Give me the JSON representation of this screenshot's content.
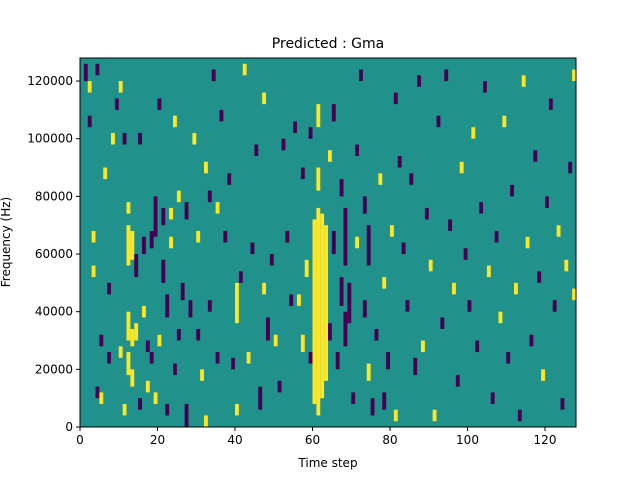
{
  "chart_data": {
    "type": "heatmap",
    "title": "Predicted : Gma",
    "xlabel": "Time step",
    "ylabel": "Frequency (Hz)",
    "xlim": [
      0,
      128
    ],
    "ylim": [
      0,
      128000
    ],
    "x_ticks": [
      0,
      20,
      40,
      60,
      80,
      100,
      120
    ],
    "y_ticks": [
      0,
      20000,
      40000,
      60000,
      80000,
      100000,
      120000
    ],
    "n_time_steps": 128,
    "n_freq_bins": 128,
    "values_legend": {
      "low": -1,
      "mid": 0,
      "high": 1
    },
    "colors": {
      "low": "#440154",
      "mid": "#21918c",
      "high": "#fde725",
      "axis": "#000000"
    },
    "cells": [
      {
        "t": 1,
        "f0": 120000,
        "f1": 126000,
        "v": -1
      },
      {
        "t": 2,
        "f0": 116000,
        "f1": 120000,
        "v": 1
      },
      {
        "t": 2,
        "f0": 104000,
        "f1": 108000,
        "v": -1
      },
      {
        "t": 3,
        "f0": 64000,
        "f1": 68000,
        "v": 1
      },
      {
        "t": 3,
        "f0": 52000,
        "f1": 56000,
        "v": 1
      },
      {
        "t": 4,
        "f0": 10000,
        "f1": 14000,
        "v": -1
      },
      {
        "t": 4,
        "f0": 122000,
        "f1": 126000,
        "v": -1
      },
      {
        "t": 5,
        "f0": 8000,
        "f1": 12000,
        "v": 1
      },
      {
        "t": 5,
        "f0": 28000,
        "f1": 32000,
        "v": -1
      },
      {
        "t": 6,
        "f0": 86000,
        "f1": 90000,
        "v": 1
      },
      {
        "t": 7,
        "f0": 46000,
        "f1": 50000,
        "v": -1
      },
      {
        "t": 7,
        "f0": 22000,
        "f1": 26000,
        "v": -1
      },
      {
        "t": 8,
        "f0": 98000,
        "f1": 102000,
        "v": 1
      },
      {
        "t": 9,
        "f0": 110000,
        "f1": 114000,
        "v": -1
      },
      {
        "t": 10,
        "f0": 24000,
        "f1": 28000,
        "v": 1
      },
      {
        "t": 10,
        "f0": 116000,
        "f1": 120000,
        "v": 1
      },
      {
        "t": 11,
        "f0": 98000,
        "f1": 102000,
        "v": -1
      },
      {
        "t": 11,
        "f0": 4000,
        "f1": 8000,
        "v": 1
      },
      {
        "t": 12,
        "f0": 74000,
        "f1": 78000,
        "v": 1
      },
      {
        "t": 12,
        "f0": 56000,
        "f1": 70000,
        "v": 1
      },
      {
        "t": 12,
        "f0": 30000,
        "f1": 40000,
        "v": 1
      },
      {
        "t": 12,
        "f0": 18000,
        "f1": 26000,
        "v": 1
      },
      {
        "t": 13,
        "f0": 58000,
        "f1": 68000,
        "v": 1
      },
      {
        "t": 13,
        "f0": 28000,
        "f1": 34000,
        "v": 1
      },
      {
        "t": 13,
        "f0": 14000,
        "f1": 20000,
        "v": 1
      },
      {
        "t": 14,
        "f0": 30000,
        "f1": 36000,
        "v": 1
      },
      {
        "t": 14,
        "f0": 52000,
        "f1": 60000,
        "v": -1
      },
      {
        "t": 15,
        "f0": 98000,
        "f1": 102000,
        "v": -1
      },
      {
        "t": 15,
        "f0": 6000,
        "f1": 10000,
        "v": -1
      },
      {
        "t": 16,
        "f0": 60000,
        "f1": 66000,
        "v": -1
      },
      {
        "t": 16,
        "f0": 38000,
        "f1": 42000,
        "v": 1
      },
      {
        "t": 17,
        "f0": 26000,
        "f1": 30000,
        "v": -1
      },
      {
        "t": 17,
        "f0": 12000,
        "f1": 16000,
        "v": 1
      },
      {
        "t": 18,
        "f0": 62000,
        "f1": 68000,
        "v": -1
      },
      {
        "t": 18,
        "f0": 22000,
        "f1": 26000,
        "v": -1
      },
      {
        "t": 19,
        "f0": 66000,
        "f1": 80000,
        "v": -1
      },
      {
        "t": 19,
        "f0": 8000,
        "f1": 12000,
        "v": 1
      },
      {
        "t": 20,
        "f0": 110000,
        "f1": 114000,
        "v": -1
      },
      {
        "t": 20,
        "f0": 28000,
        "f1": 32000,
        "v": 1
      },
      {
        "t": 21,
        "f0": 70000,
        "f1": 76000,
        "v": -1
      },
      {
        "t": 21,
        "f0": 50000,
        "f1": 58000,
        "v": -1
      },
      {
        "t": 22,
        "f0": 38000,
        "f1": 46000,
        "v": -1
      },
      {
        "t": 22,
        "f0": 4000,
        "f1": 8000,
        "v": -1
      },
      {
        "t": 23,
        "f0": 72000,
        "f1": 76000,
        "v": 1
      },
      {
        "t": 23,
        "f0": 62000,
        "f1": 66000,
        "v": 1
      },
      {
        "t": 24,
        "f0": 104000,
        "f1": 108000,
        "v": 1
      },
      {
        "t": 24,
        "f0": 18000,
        "f1": 22000,
        "v": -1
      },
      {
        "t": 25,
        "f0": 78000,
        "f1": 82000,
        "v": 1
      },
      {
        "t": 25,
        "f0": 30000,
        "f1": 34000,
        "v": -1
      },
      {
        "t": 26,
        "f0": 44000,
        "f1": 50000,
        "v": -1
      },
      {
        "t": 27,
        "f0": 72000,
        "f1": 78000,
        "v": -1
      },
      {
        "t": 27,
        "f0": 0,
        "f1": 8000,
        "v": -1
      },
      {
        "t": 28,
        "f0": 38000,
        "f1": 44000,
        "v": -1
      },
      {
        "t": 29,
        "f0": 98000,
        "f1": 102000,
        "v": 1
      },
      {
        "t": 30,
        "f0": 64000,
        "f1": 68000,
        "v": 1
      },
      {
        "t": 30,
        "f0": 30000,
        "f1": 34000,
        "v": -1
      },
      {
        "t": 31,
        "f0": 16000,
        "f1": 20000,
        "v": 1
      },
      {
        "t": 32,
        "f0": 88000,
        "f1": 92000,
        "v": 1
      },
      {
        "t": 32,
        "f0": 0,
        "f1": 4000,
        "v": 1
      },
      {
        "t": 33,
        "f0": 78000,
        "f1": 82000,
        "v": -1
      },
      {
        "t": 33,
        "f0": 40000,
        "f1": 44000,
        "v": -1
      },
      {
        "t": 34,
        "f0": 120000,
        "f1": 124000,
        "v": -1
      },
      {
        "t": 35,
        "f0": 74000,
        "f1": 78000,
        "v": 1
      },
      {
        "t": 35,
        "f0": 22000,
        "f1": 26000,
        "v": -1
      },
      {
        "t": 36,
        "f0": 106000,
        "f1": 110000,
        "v": -1
      },
      {
        "t": 37,
        "f0": 64000,
        "f1": 68000,
        "v": -1
      },
      {
        "t": 38,
        "f0": 84000,
        "f1": 88000,
        "v": -1
      },
      {
        "t": 39,
        "f0": 20000,
        "f1": 24000,
        "v": -1
      },
      {
        "t": 40,
        "f0": 36000,
        "f1": 50000,
        "v": 1
      },
      {
        "t": 40,
        "f0": 4000,
        "f1": 8000,
        "v": 1
      },
      {
        "t": 41,
        "f0": 50000,
        "f1": 54000,
        "v": -1
      },
      {
        "t": 42,
        "f0": 122000,
        "f1": 126000,
        "v": 1
      },
      {
        "t": 43,
        "f0": 22000,
        "f1": 26000,
        "v": 1
      },
      {
        "t": 44,
        "f0": 60000,
        "f1": 64000,
        "v": -1
      },
      {
        "t": 45,
        "f0": 94000,
        "f1": 98000,
        "v": -1
      },
      {
        "t": 46,
        "f0": 6000,
        "f1": 14000,
        "v": -1
      },
      {
        "t": 47,
        "f0": 112000,
        "f1": 116000,
        "v": 1
      },
      {
        "t": 47,
        "f0": 46000,
        "f1": 50000,
        "v": 1
      },
      {
        "t": 48,
        "f0": 30000,
        "f1": 38000,
        "v": -1
      },
      {
        "t": 49,
        "f0": 56000,
        "f1": 60000,
        "v": -1
      },
      {
        "t": 50,
        "f0": 28000,
        "f1": 32000,
        "v": 1
      },
      {
        "t": 51,
        "f0": 12000,
        "f1": 16000,
        "v": -1
      },
      {
        "t": 52,
        "f0": 96000,
        "f1": 100000,
        "v": -1
      },
      {
        "t": 53,
        "f0": 64000,
        "f1": 68000,
        "v": -1
      },
      {
        "t": 54,
        "f0": 42000,
        "f1": 46000,
        "v": -1
      },
      {
        "t": 55,
        "f0": 102000,
        "f1": 106000,
        "v": -1
      },
      {
        "t": 56,
        "f0": 42000,
        "f1": 46000,
        "v": 1
      },
      {
        "t": 57,
        "f0": 86000,
        "f1": 90000,
        "v": -1
      },
      {
        "t": 57,
        "f0": 26000,
        "f1": 32000,
        "v": 1
      },
      {
        "t": 58,
        "f0": 52000,
        "f1": 58000,
        "v": 1
      },
      {
        "t": 59,
        "f0": 100000,
        "f1": 104000,
        "v": -1
      },
      {
        "t": 59,
        "f0": 22000,
        "f1": 26000,
        "v": -1
      },
      {
        "t": 60,
        "f0": 8000,
        "f1": 72000,
        "v": 1
      },
      {
        "t": 61,
        "f0": 4000,
        "f1": 76000,
        "v": 1
      },
      {
        "t": 61,
        "f0": 82000,
        "f1": 90000,
        "v": 1
      },
      {
        "t": 61,
        "f0": 104000,
        "f1": 112000,
        "v": 1
      },
      {
        "t": 62,
        "f0": 10000,
        "f1": 74000,
        "v": 1
      },
      {
        "t": 63,
        "f0": 16000,
        "f1": 70000,
        "v": 1
      },
      {
        "t": 64,
        "f0": 92000,
        "f1": 96000,
        "v": 1
      },
      {
        "t": 64,
        "f0": 30000,
        "f1": 36000,
        "v": -1
      },
      {
        "t": 65,
        "f0": 106000,
        "f1": 112000,
        "v": -1
      },
      {
        "t": 65,
        "f0": 60000,
        "f1": 68000,
        "v": -1
      },
      {
        "t": 66,
        "f0": 20000,
        "f1": 26000,
        "v": -1
      },
      {
        "t": 67,
        "f0": 80000,
        "f1": 86000,
        "v": -1
      },
      {
        "t": 67,
        "f0": 42000,
        "f1": 52000,
        "v": -1
      },
      {
        "t": 68,
        "f0": 56000,
        "f1": 76000,
        "v": -1
      },
      {
        "t": 68,
        "f0": 28000,
        "f1": 40000,
        "v": -1
      },
      {
        "t": 69,
        "f0": 36000,
        "f1": 50000,
        "v": -1
      },
      {
        "t": 70,
        "f0": 8000,
        "f1": 12000,
        "v": -1
      },
      {
        "t": 71,
        "f0": 62000,
        "f1": 66000,
        "v": 1
      },
      {
        "t": 71,
        "f0": 94000,
        "f1": 98000,
        "v": -1
      },
      {
        "t": 72,
        "f0": 120000,
        "f1": 124000,
        "v": -1
      },
      {
        "t": 73,
        "f0": 74000,
        "f1": 80000,
        "v": -1
      },
      {
        "t": 73,
        "f0": 38000,
        "f1": 44000,
        "v": -1
      },
      {
        "t": 74,
        "f0": 56000,
        "f1": 70000,
        "v": -1
      },
      {
        "t": 74,
        "f0": 16000,
        "f1": 22000,
        "v": 1
      },
      {
        "t": 75,
        "f0": 4000,
        "f1": 10000,
        "v": -1
      },
      {
        "t": 76,
        "f0": 30000,
        "f1": 34000,
        "v": -1
      },
      {
        "t": 77,
        "f0": 84000,
        "f1": 88000,
        "v": 1
      },
      {
        "t": 78,
        "f0": 48000,
        "f1": 52000,
        "v": 1
      },
      {
        "t": 78,
        "f0": 6000,
        "f1": 12000,
        "v": -1
      },
      {
        "t": 79,
        "f0": 20000,
        "f1": 26000,
        "v": -1
      },
      {
        "t": 80,
        "f0": 66000,
        "f1": 70000,
        "v": 1
      },
      {
        "t": 81,
        "f0": 112000,
        "f1": 116000,
        "v": -1
      },
      {
        "t": 81,
        "f0": 2000,
        "f1": 6000,
        "v": 1
      },
      {
        "t": 82,
        "f0": 90000,
        "f1": 94000,
        "v": -1
      },
      {
        "t": 83,
        "f0": 60000,
        "f1": 64000,
        "v": -1
      },
      {
        "t": 84,
        "f0": 40000,
        "f1": 44000,
        "v": -1
      },
      {
        "t": 85,
        "f0": 84000,
        "f1": 88000,
        "v": -1
      },
      {
        "t": 86,
        "f0": 18000,
        "f1": 24000,
        "v": -1
      },
      {
        "t": 87,
        "f0": 118000,
        "f1": 122000,
        "v": -1
      },
      {
        "t": 88,
        "f0": 26000,
        "f1": 30000,
        "v": 1
      },
      {
        "t": 89,
        "f0": 72000,
        "f1": 76000,
        "v": -1
      },
      {
        "t": 90,
        "f0": 54000,
        "f1": 58000,
        "v": 1
      },
      {
        "t": 91,
        "f0": 2000,
        "f1": 6000,
        "v": 1
      },
      {
        "t": 92,
        "f0": 104000,
        "f1": 108000,
        "v": -1
      },
      {
        "t": 93,
        "f0": 34000,
        "f1": 38000,
        "v": -1
      },
      {
        "t": 94,
        "f0": 120000,
        "f1": 124000,
        "v": -1
      },
      {
        "t": 95,
        "f0": 68000,
        "f1": 72000,
        "v": -1
      },
      {
        "t": 96,
        "f0": 46000,
        "f1": 50000,
        "v": 1
      },
      {
        "t": 97,
        "f0": 14000,
        "f1": 18000,
        "v": -1
      },
      {
        "t": 98,
        "f0": 88000,
        "f1": 92000,
        "v": 1
      },
      {
        "t": 99,
        "f0": 58000,
        "f1": 62000,
        "v": -1
      },
      {
        "t": 100,
        "f0": 40000,
        "f1": 44000,
        "v": -1
      },
      {
        "t": 101,
        "f0": 100000,
        "f1": 104000,
        "v": 1
      },
      {
        "t": 102,
        "f0": 26000,
        "f1": 30000,
        "v": -1
      },
      {
        "t": 103,
        "f0": 74000,
        "f1": 78000,
        "v": -1
      },
      {
        "t": 104,
        "f0": 116000,
        "f1": 120000,
        "v": -1
      },
      {
        "t": 105,
        "f0": 52000,
        "f1": 56000,
        "v": 1
      },
      {
        "t": 106,
        "f0": 8000,
        "f1": 12000,
        "v": -1
      },
      {
        "t": 107,
        "f0": 64000,
        "f1": 68000,
        "v": -1
      },
      {
        "t": 108,
        "f0": 36000,
        "f1": 40000,
        "v": 1
      },
      {
        "t": 109,
        "f0": 104000,
        "f1": 108000,
        "v": 1
      },
      {
        "t": 110,
        "f0": 22000,
        "f1": 26000,
        "v": -1
      },
      {
        "t": 111,
        "f0": 80000,
        "f1": 84000,
        "v": -1
      },
      {
        "t": 112,
        "f0": 46000,
        "f1": 50000,
        "v": 1
      },
      {
        "t": 113,
        "f0": 2000,
        "f1": 6000,
        "v": -1
      },
      {
        "t": 114,
        "f0": 118000,
        "f1": 122000,
        "v": 1
      },
      {
        "t": 115,
        "f0": 62000,
        "f1": 66000,
        "v": 1
      },
      {
        "t": 116,
        "f0": 28000,
        "f1": 32000,
        "v": -1
      },
      {
        "t": 117,
        "f0": 92000,
        "f1": 96000,
        "v": -1
      },
      {
        "t": 118,
        "f0": 50000,
        "f1": 54000,
        "v": -1
      },
      {
        "t": 119,
        "f0": 16000,
        "f1": 20000,
        "v": 1
      },
      {
        "t": 120,
        "f0": 76000,
        "f1": 80000,
        "v": -1
      },
      {
        "t": 121,
        "f0": 110000,
        "f1": 114000,
        "v": -1
      },
      {
        "t": 122,
        "f0": 40000,
        "f1": 44000,
        "v": -1
      },
      {
        "t": 123,
        "f0": 66000,
        "f1": 70000,
        "v": 1
      },
      {
        "t": 124,
        "f0": 6000,
        "f1": 10000,
        "v": -1
      },
      {
        "t": 125,
        "f0": 54000,
        "f1": 58000,
        "v": 1
      },
      {
        "t": 126,
        "f0": 88000,
        "f1": 92000,
        "v": -1
      },
      {
        "t": 127,
        "f0": 44000,
        "f1": 48000,
        "v": 1
      },
      {
        "t": 127,
        "f0": 120000,
        "f1": 124000,
        "v": 1
      }
    ]
  }
}
